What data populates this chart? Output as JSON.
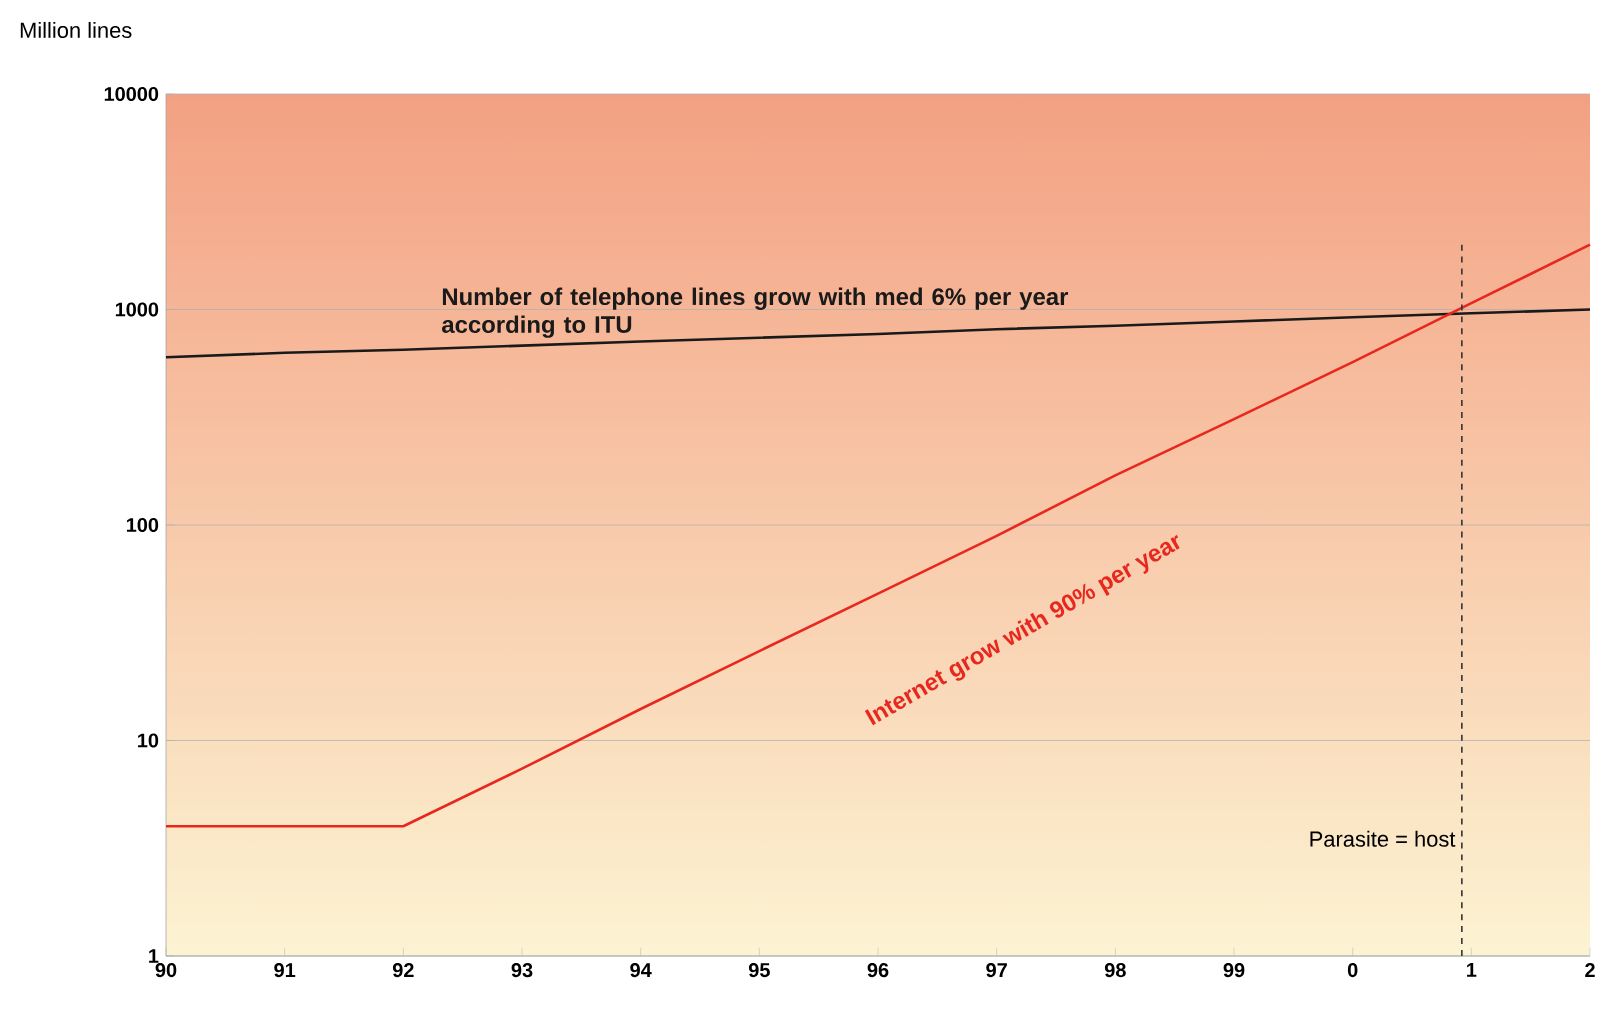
{
  "chart_data": {
    "type": "line",
    "ylabel": "Million lines",
    "log": "y",
    "grid": "y",
    "categories": [
      "90",
      "91",
      "92",
      "93",
      "94",
      "95",
      "96",
      "97",
      "98",
      "99",
      "0",
      "1",
      "2"
    ],
    "ylim": [
      1,
      10000
    ],
    "yticks": [
      1,
      10,
      100,
      1000,
      10000
    ],
    "series": [
      {
        "name": "Number of telephone lines grow with med 6% per year according to ITU",
        "color": "#1a1a1a",
        "values": [
          600,
          630,
          650,
          680,
          710,
          740,
          770,
          810,
          840,
          880,
          920,
          960,
          1000
        ]
      },
      {
        "name": "Internet grow with 90% per year",
        "color": "#e8281e",
        "values": [
          4,
          4,
          4,
          7.4,
          14,
          26,
          48,
          89,
          170,
          310,
          570,
          1070,
          2000
        ]
      }
    ],
    "ref_lines": [
      {
        "axis": "x",
        "value": "1",
        "label": "Parasite = host",
        "line_style": "dashed",
        "color": "#333333"
      }
    ]
  }
}
